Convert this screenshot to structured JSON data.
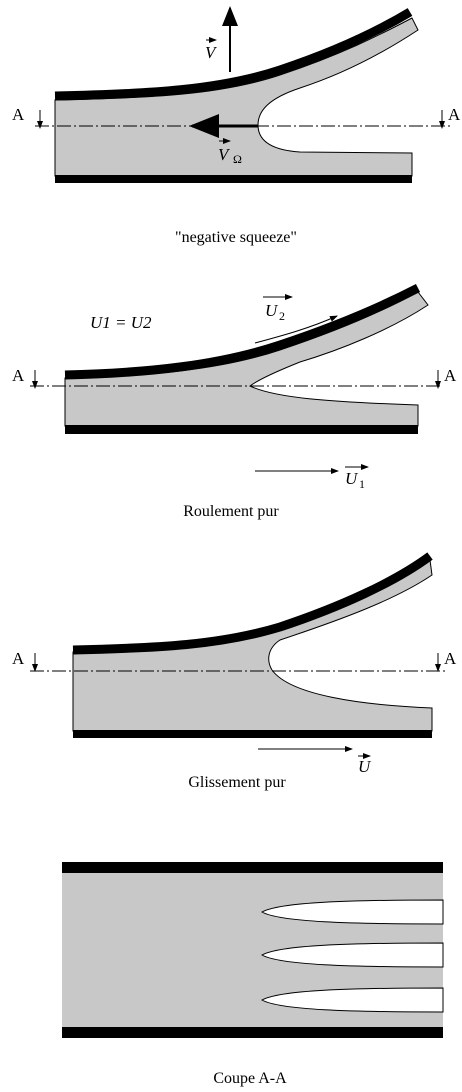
{
  "panels": [
    {
      "caption": "\"negative squeeze\"",
      "section_left": "A",
      "section_right": "A",
      "vectors": [
        {
          "symbol": "V"
        },
        {
          "symbol": "V",
          "subscript": "Ω"
        }
      ]
    },
    {
      "caption": "Roulement pur",
      "section_left": "A",
      "section_right": "A",
      "equation": "U1 = U2",
      "vectors": [
        {
          "symbol": "U",
          "subscript": "2"
        },
        {
          "symbol": "U",
          "subscript": "1"
        }
      ]
    },
    {
      "caption": "Glissement pur",
      "section_left": "A",
      "section_right": "A",
      "vectors": [
        {
          "symbol": "U"
        }
      ]
    },
    {
      "caption": "Coupe A-A"
    }
  ]
}
